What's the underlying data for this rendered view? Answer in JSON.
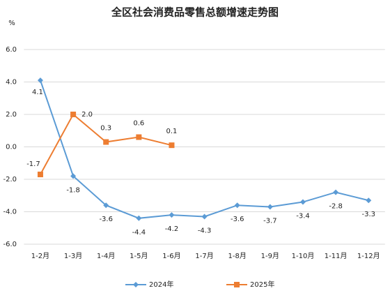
{
  "chart_data": {
    "type": "line",
    "title": "全区社会消费品零售总额增速走势图",
    "ylabel": "%",
    "categories": [
      "1-2月",
      "1-3月",
      "1-4月",
      "1-5月",
      "1-6月",
      "1-7月",
      "1-8月",
      "1-9月",
      "1-10月",
      "1-11月",
      "1-12月"
    ],
    "series": [
      {
        "name": "2024年",
        "color": "#5b9bd5",
        "marker": "diamond",
        "values": [
          4.1,
          -1.8,
          -3.6,
          -4.4,
          -4.2,
          -4.3,
          -3.6,
          -3.7,
          -3.4,
          -2.8,
          -3.3
        ]
      },
      {
        "name": "2025年",
        "color": "#ed7d31",
        "marker": "square",
        "values": [
          -1.7,
          2,
          0.3,
          0.6,
          0.1,
          null,
          null,
          null,
          null,
          null,
          null
        ],
        "value_labels": [
          "-1.7",
          "2.0",
          "0.3",
          "0.6",
          "0.1",
          null,
          null,
          null,
          null,
          null,
          null
        ]
      }
    ],
    "ylim": [
      -6,
      6
    ],
    "yticks": [
      {
        "value": -6,
        "label": "-6.0"
      },
      {
        "value": -4,
        "label": "-4.0"
      },
      {
        "value": -2,
        "label": "-2.0"
      },
      {
        "value": 0,
        "label": "0.0"
      },
      {
        "value": 2,
        "label": "2.0"
      },
      {
        "value": 4,
        "label": "4.0"
      },
      {
        "value": 6,
        "label": "6.0"
      }
    ],
    "grid": true,
    "legend": "bottom"
  }
}
